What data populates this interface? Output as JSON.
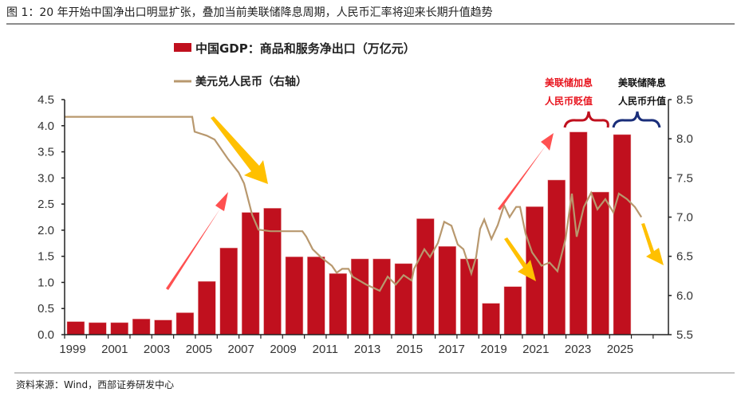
{
  "figure_title": "图 1：20 年开始中国净出口明显扩张，叠加当前美联储降息周期，人民币汇率将迎来长期升值趋势",
  "source": "资料来源：Wind，西部证券研发中心",
  "annotations": {
    "hike_line1": "美联储加息",
    "hike_line2": "人民币贬值",
    "cut_line1": "美联储降息",
    "cut_line2": "人民币升值"
  },
  "colors": {
    "bar": "#C0101E",
    "line": "#B8986E",
    "hike": "#E8141E",
    "cut": "#1A2E7A",
    "arrow_red": "#FF5050",
    "arrow_yellow": "#FFC000"
  },
  "chart_data": {
    "type": "bar+line",
    "legend": [
      "中国GDP：商品和服务净出口（万亿元）",
      "美元兑人民币（右轴）"
    ],
    "legend_position": "top",
    "grid": false,
    "x_tick_labels": [
      "1999",
      "2001",
      "2003",
      "2005",
      "2007",
      "2009",
      "2011",
      "2013",
      "2015",
      "2017",
      "2019",
      "2021",
      "2023",
      "2025"
    ],
    "left_axis": {
      "ylim": [
        0,
        4.5
      ],
      "ticks": [
        "0.0",
        "0.5",
        "1.0",
        "1.5",
        "2.0",
        "2.5",
        "3.0",
        "3.5",
        "4.0",
        "4.5"
      ]
    },
    "right_axis": {
      "ylim": [
        5.5,
        8.5
      ],
      "ticks": [
        "5.5",
        "6.0",
        "6.5",
        "7.0",
        "7.5",
        "8.0",
        "8.5"
      ]
    },
    "bars": {
      "name": "中国GDP：商品和服务净出口（万亿元）",
      "categories": [
        1999,
        2000,
        2001,
        2002,
        2003,
        2004,
        2005,
        2006,
        2007,
        2008,
        2009,
        2010,
        2011,
        2012,
        2013,
        2014,
        2015,
        2016,
        2017,
        2018,
        2019,
        2020,
        2021,
        2022,
        2023,
        2024
      ],
      "values": [
        0.25,
        0.23,
        0.23,
        0.3,
        0.28,
        0.42,
        1.02,
        1.66,
        2.34,
        2.42,
        1.49,
        1.49,
        1.17,
        1.45,
        1.45,
        1.36,
        2.22,
        1.69,
        1.45,
        0.6,
        0.92,
        2.45,
        2.96,
        3.88,
        2.73,
        3.83
      ]
    },
    "line": {
      "name": "美元兑人民币（右轴）",
      "points": [
        [
          1999.0,
          8.28
        ],
        [
          2004.84,
          8.28
        ],
        [
          2004.95,
          8.09
        ],
        [
          2005.5,
          8.04
        ],
        [
          2005.86,
          7.99
        ],
        [
          2006.48,
          7.74
        ],
        [
          2006.96,
          7.57
        ],
        [
          2007.21,
          7.43
        ],
        [
          2007.58,
          7.03
        ],
        [
          2007.87,
          6.84
        ],
        [
          2008.42,
          6.82
        ],
        [
          2009.88,
          6.82
        ],
        [
          2010.06,
          6.75
        ],
        [
          2010.35,
          6.59
        ],
        [
          2010.72,
          6.49
        ],
        [
          2011.23,
          6.38
        ],
        [
          2011.45,
          6.29
        ],
        [
          2011.7,
          6.34
        ],
        [
          2011.99,
          6.34
        ],
        [
          2012.18,
          6.24
        ],
        [
          2012.8,
          6.14
        ],
        [
          2013.42,
          6.06
        ],
        [
          2013.78,
          6.24
        ],
        [
          2014.15,
          6.14
        ],
        [
          2014.51,
          6.26
        ],
        [
          2014.88,
          6.19
        ],
        [
          2014.99,
          6.34
        ],
        [
          2015.46,
          6.59
        ],
        [
          2015.72,
          6.49
        ],
        [
          2016.08,
          6.67
        ],
        [
          2016.37,
          6.94
        ],
        [
          2016.7,
          6.89
        ],
        [
          2016.99,
          6.65
        ],
        [
          2017.25,
          6.59
        ],
        [
          2017.61,
          6.28
        ],
        [
          2017.83,
          6.49
        ],
        [
          2018.01,
          6.85
        ],
        [
          2018.2,
          6.97
        ],
        [
          2018.53,
          6.72
        ],
        [
          2018.82,
          6.9
        ],
        [
          2019.11,
          7.15
        ],
        [
          2019.36,
          7.0
        ],
        [
          2019.66,
          7.13
        ],
        [
          2019.84,
          7.13
        ],
        [
          2020.09,
          6.79
        ],
        [
          2020.39,
          6.55
        ],
        [
          2020.82,
          6.38
        ],
        [
          2021.19,
          6.42
        ],
        [
          2021.55,
          6.31
        ],
        [
          2021.92,
          6.72
        ],
        [
          2022.21,
          7.3
        ],
        [
          2022.43,
          6.75
        ],
        [
          2022.76,
          7.13
        ],
        [
          2023.09,
          7.31
        ],
        [
          2023.38,
          7.1
        ],
        [
          2023.74,
          7.23
        ],
        [
          2024.11,
          7.06
        ],
        [
          2024.36,
          7.3
        ],
        [
          2024.73,
          7.23
        ],
        [
          2025.09,
          7.13
        ],
        [
          2025.39,
          7.0
        ]
      ]
    }
  }
}
